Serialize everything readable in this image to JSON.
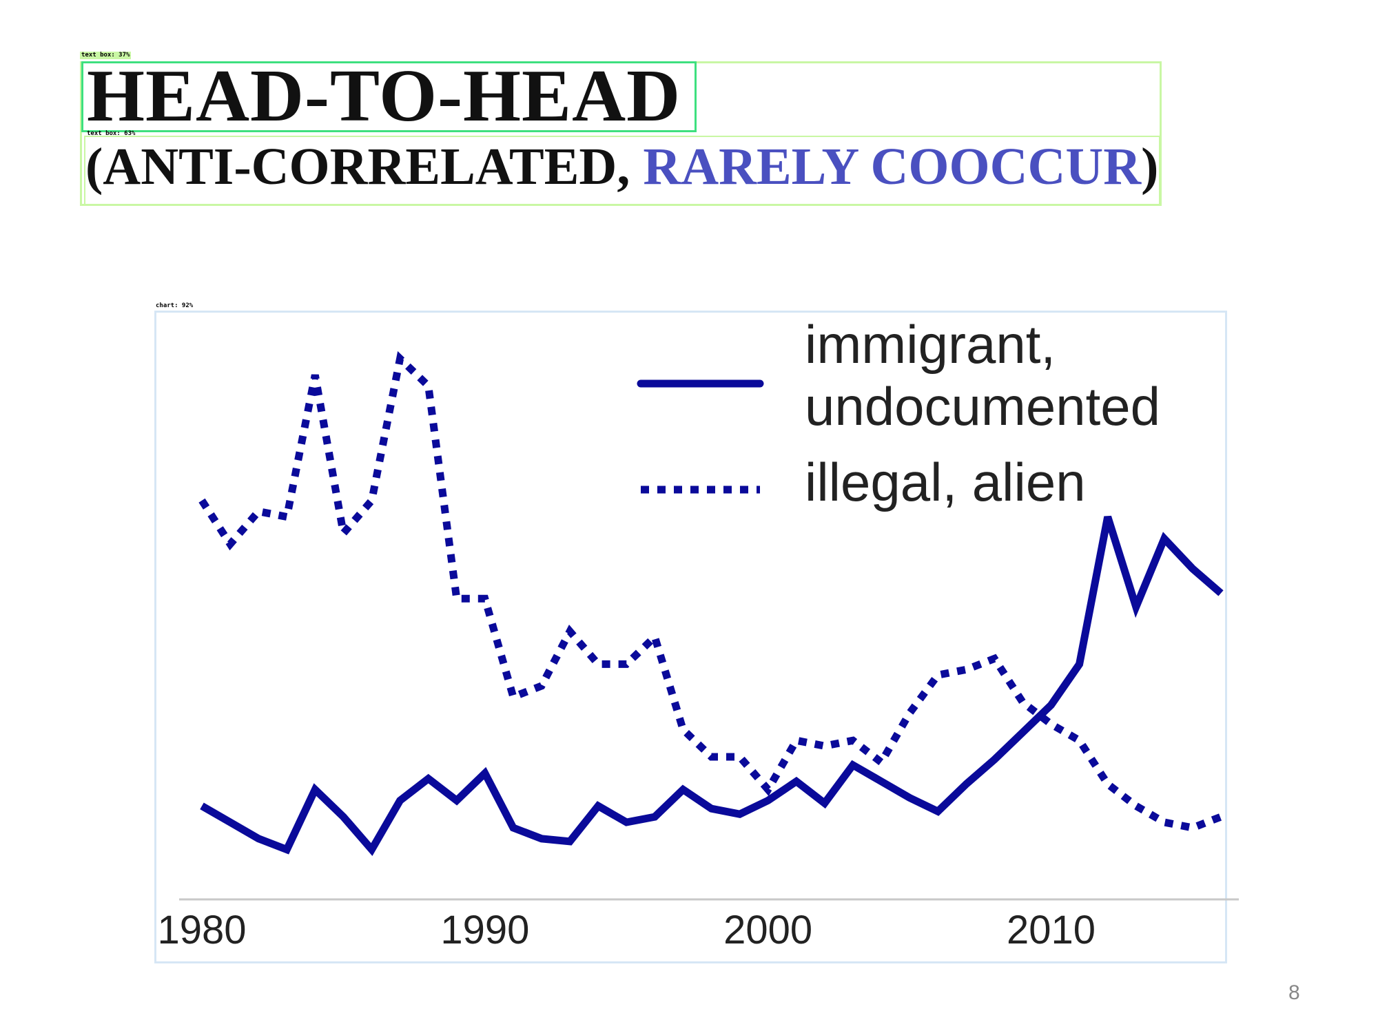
{
  "detections": {
    "title_box_label": "text box: 37%",
    "subtitle_box_label": "text box: 63%",
    "chart_box_label": "chart: 92%"
  },
  "slide": {
    "title": "HEAD-TO-HEAD",
    "subtitle_open": "(ANTI-CORRELATED, ",
    "subtitle_accent": "RARELY COOCCUR",
    "subtitle_close": ")",
    "page_number": "8"
  },
  "colors": {
    "series": "#0a0a9a",
    "accent": "#4a50c0",
    "axis": "#c8c8c8",
    "chart_box": "#d6e6f5",
    "title_box": "#c9f7a4",
    "title_inner_box": "#3ee07f"
  },
  "chart_data": {
    "type": "line",
    "title": "",
    "xlabel": "",
    "ylabel": "",
    "xlim": [
      1980,
      2016
    ],
    "ylim": [
      0,
      100
    ],
    "x_ticks": [
      "1980",
      "1990",
      "2000",
      "2010"
    ],
    "legend": "top-right",
    "grid": false,
    "series": [
      {
        "name": "immigrant,\nundocumented",
        "style": "solid",
        "x": [
          1980,
          1981,
          1982,
          1983,
          1984,
          1985,
          1986,
          1987,
          1988,
          1989,
          1990,
          1991,
          1992,
          1993,
          1994,
          1995,
          1996,
          1997,
          1998,
          1999,
          2000,
          2001,
          2002,
          2003,
          2004,
          2005,
          2006,
          2007,
          2008,
          2009,
          2010,
          2011,
          2012,
          2013,
          2014,
          2015,
          2016
        ],
        "values": [
          16,
          13,
          10,
          8,
          19,
          14,
          8,
          17,
          21,
          17,
          22,
          12,
          10,
          9.5,
          16,
          13,
          14,
          19,
          15.5,
          14.5,
          17,
          20.5,
          16.5,
          23.5,
          20.5,
          17.5,
          15,
          20,
          24.5,
          29.5,
          34.5,
          42,
          69,
          52.5,
          65,
          59.5,
          55
        ]
      },
      {
        "name": "illegal, alien",
        "style": "dotted",
        "x": [
          1980,
          1981,
          1982,
          1983,
          1984,
          1985,
          1986,
          1987,
          1988,
          1989,
          1990,
          1991,
          1992,
          1993,
          1994,
          1995,
          1996,
          1997,
          1998,
          1999,
          2000,
          2001,
          2002,
          2003,
          2004,
          2005,
          2006,
          2007,
          2008,
          2009,
          2010,
          2011,
          2012,
          2013,
          2014,
          2015,
          2016
        ],
        "values": [
          72,
          64,
          70,
          69,
          95,
          66,
          72,
          98,
          93,
          54,
          54,
          36,
          38,
          48,
          42,
          42,
          47,
          30,
          25,
          25,
          19,
          28,
          27,
          28,
          24,
          33,
          40,
          41,
          43,
          35,
          31,
          28,
          20,
          16,
          13,
          12,
          14
        ]
      }
    ]
  }
}
